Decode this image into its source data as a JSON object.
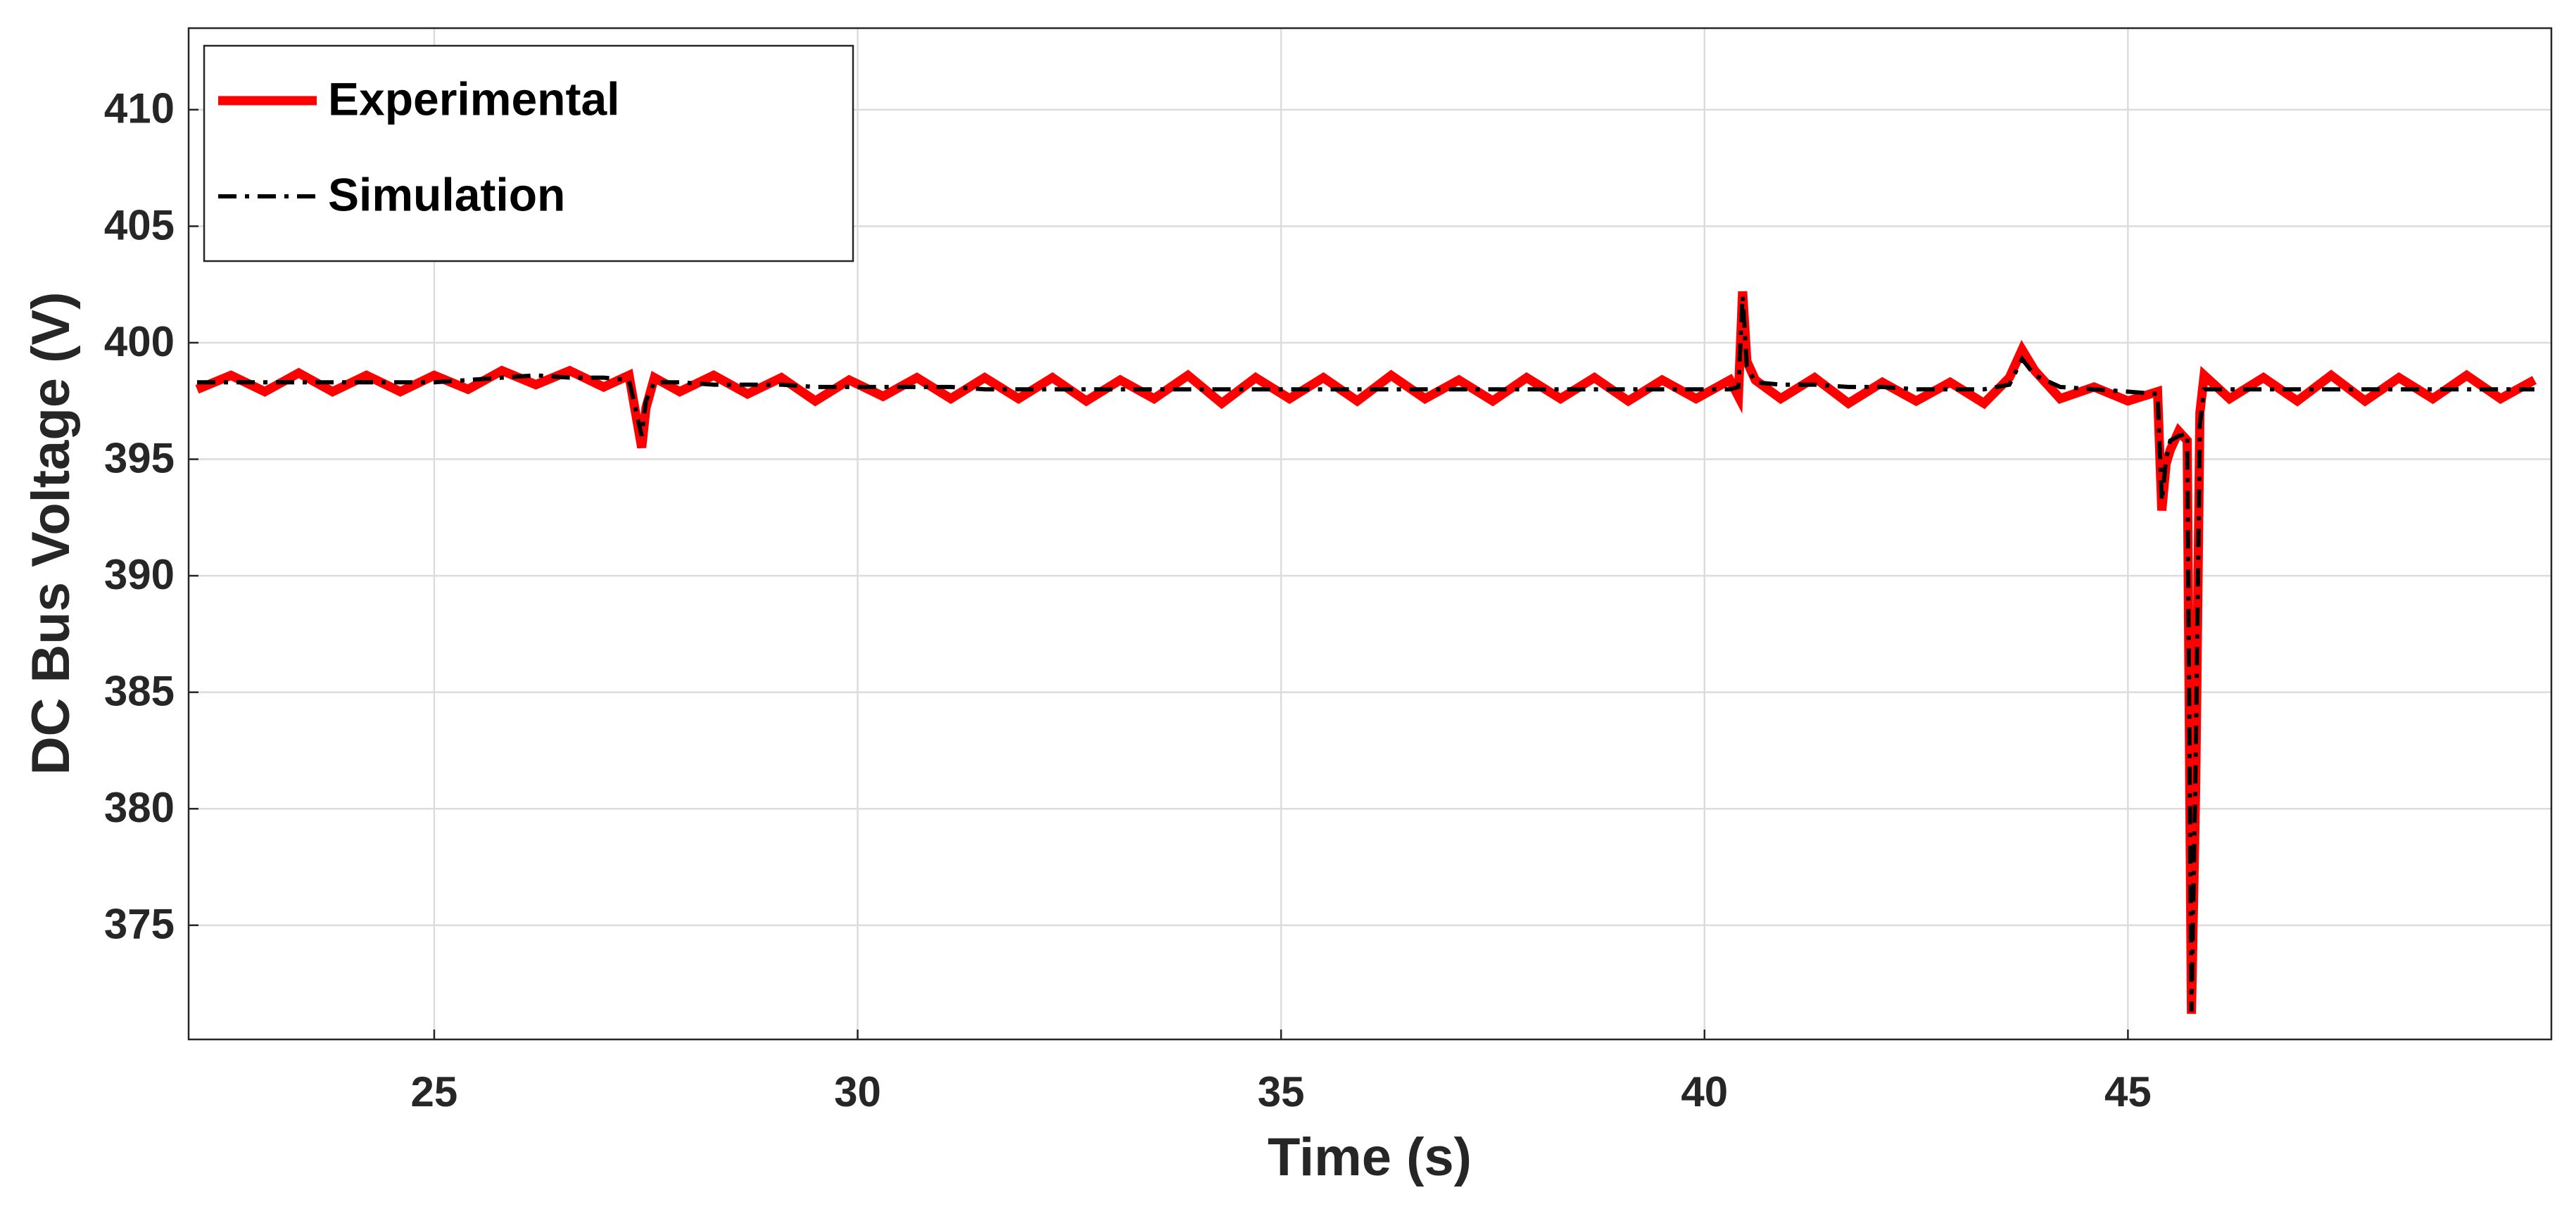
{
  "chart_data": {
    "type": "line",
    "xlabel": "Time (s)",
    "ylabel": "DC Bus Voltage (V)",
    "x": [
      22.2,
      22.6,
      23.0,
      23.4,
      23.8,
      24.2,
      24.6,
      25.0,
      25.4,
      25.8,
      26.2,
      26.6,
      27.0,
      27.3,
      27.45,
      27.5,
      27.6,
      27.9,
      28.3,
      28.7,
      29.1,
      29.5,
      29.9,
      30.3,
      30.7,
      31.1,
      31.5,
      31.9,
      32.3,
      32.7,
      33.1,
      33.5,
      33.9,
      34.3,
      34.7,
      35.1,
      35.5,
      35.9,
      36.3,
      36.7,
      37.1,
      37.5,
      37.9,
      38.3,
      38.7,
      39.1,
      39.5,
      39.9,
      40.3,
      40.4,
      40.45,
      40.5,
      40.6,
      40.9,
      41.3,
      41.7,
      42.1,
      42.5,
      42.9,
      43.3,
      43.6,
      43.75,
      43.9,
      44.2,
      44.6,
      45.0,
      45.35,
      45.4,
      45.45,
      45.5,
      45.6,
      45.7,
      45.75,
      45.8,
      45.85,
      45.9,
      46.2,
      46.6,
      47.0,
      47.4,
      47.8,
      48.2,
      48.6,
      49.0,
      49.4,
      49.8
    ],
    "series": [
      {
        "name": "Experimental",
        "color": "#ff0000",
        "linestyle": "solid",
        "values": [
          398.0,
          398.6,
          397.9,
          398.7,
          397.9,
          398.6,
          397.9,
          398.6,
          398.0,
          398.8,
          398.2,
          398.8,
          398.1,
          398.6,
          395.5,
          397.2,
          398.5,
          397.9,
          398.6,
          397.8,
          398.5,
          397.5,
          398.4,
          397.7,
          398.5,
          397.6,
          398.5,
          397.6,
          398.5,
          397.5,
          398.4,
          397.6,
          398.6,
          397.4,
          398.5,
          397.6,
          398.5,
          397.5,
          398.6,
          397.6,
          398.4,
          397.5,
          398.5,
          397.6,
          398.5,
          397.5,
          398.4,
          397.6,
          398.4,
          397.7,
          402.2,
          399.2,
          398.4,
          397.6,
          398.5,
          397.4,
          398.3,
          397.5,
          398.3,
          397.4,
          398.5,
          399.7,
          398.8,
          397.6,
          398.1,
          397.5,
          397.9,
          392.8,
          394.8,
          395.4,
          396.2,
          395.8,
          371.2,
          381.0,
          397.0,
          398.6,
          397.6,
          398.5,
          397.5,
          398.6,
          397.5,
          398.5,
          397.6,
          398.6,
          397.6,
          398.4
        ]
      },
      {
        "name": "Simulation",
        "color": "#000000",
        "linestyle": "dashdot",
        "values": [
          398.3,
          398.3,
          398.3,
          398.3,
          398.3,
          398.3,
          398.3,
          398.3,
          398.4,
          398.5,
          398.6,
          398.5,
          398.5,
          398.4,
          396.0,
          397.5,
          398.3,
          398.3,
          398.2,
          398.2,
          398.2,
          398.1,
          398.1,
          398.1,
          398.1,
          398.1,
          398.0,
          398.0,
          398.0,
          398.0,
          398.0,
          398.0,
          398.0,
          398.0,
          398.0,
          398.0,
          398.0,
          398.0,
          398.0,
          398.0,
          398.0,
          398.0,
          398.0,
          398.0,
          398.0,
          398.0,
          398.0,
          398.0,
          398.0,
          398.1,
          402.0,
          399.0,
          398.3,
          398.2,
          398.2,
          398.1,
          398.1,
          398.0,
          398.0,
          398.0,
          398.2,
          399.3,
          398.6,
          398.1,
          398.0,
          397.9,
          397.8,
          393.2,
          395.0,
          395.8,
          396.0,
          396.1,
          371.3,
          382.0,
          396.5,
          398.0,
          398.0,
          398.0,
          398.0,
          398.0,
          398.0,
          398.0,
          398.0,
          398.0,
          398.0,
          398.0
        ]
      }
    ],
    "xlim": [
      22.1,
      50.0
    ],
    "ylim": [
      370.1,
      413.5
    ],
    "xticks": [
      25,
      30,
      35,
      40,
      45
    ],
    "yticks": [
      375,
      380,
      385,
      390,
      395,
      400,
      405,
      410
    ],
    "grid": true,
    "legend": "top-left"
  }
}
